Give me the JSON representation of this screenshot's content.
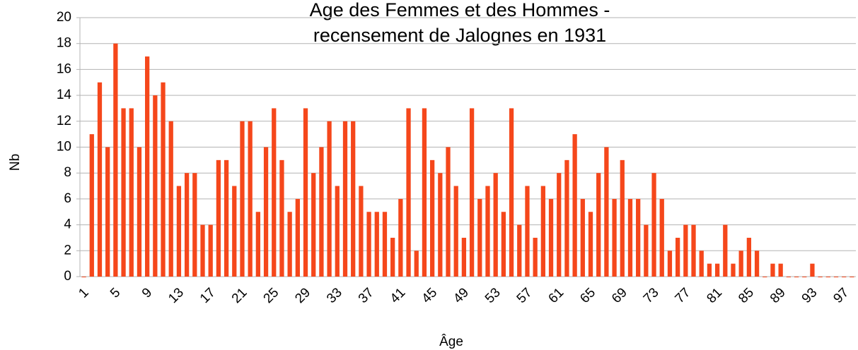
{
  "chart_data": {
    "type": "bar",
    "title": [
      "Age des Femmes et des Hommes -",
      "recensement de Jalognes en 1931"
    ],
    "x_label": "Âge",
    "y_label": "Nb",
    "categories": [
      "1",
      null,
      null,
      null,
      "5",
      null,
      null,
      null,
      "9",
      null,
      null,
      null,
      "13",
      null,
      null,
      null,
      "17",
      null,
      null,
      null,
      "21",
      null,
      null,
      null,
      "25",
      null,
      null,
      null,
      "29",
      null,
      null,
      null,
      "33",
      null,
      null,
      null,
      "37",
      null,
      null,
      null,
      "41",
      null,
      null,
      null,
      "45",
      null,
      null,
      null,
      "49",
      null,
      null,
      null,
      "53",
      null,
      null,
      null,
      "57",
      null,
      null,
      null,
      "61",
      null,
      null,
      null,
      "65",
      null,
      null,
      null,
      "69",
      null,
      null,
      null,
      "73",
      null,
      null,
      null,
      "77",
      null,
      null,
      null,
      "81",
      null,
      null,
      null,
      "85",
      null,
      null,
      null,
      "89",
      null,
      null,
      null,
      "93",
      null,
      null,
      null,
      "97",
      null
    ],
    "values": [
      0,
      11,
      15,
      10,
      18,
      13,
      13,
      10,
      17,
      14,
      15,
      12,
      7,
      8,
      8,
      4,
      4,
      9,
      9,
      7,
      12,
      12,
      5,
      10,
      13,
      9,
      5,
      6,
      13,
      8,
      10,
      12,
      7,
      12,
      12,
      7,
      5,
      5,
      5,
      3,
      6,
      13,
      2,
      13,
      9,
      8,
      10,
      7,
      3,
      13,
      6,
      7,
      8,
      5,
      13,
      4,
      7,
      3,
      7,
      6,
      8,
      9,
      11,
      6,
      5,
      8,
      10,
      6,
      9,
      6,
      6,
      4,
      8,
      6,
      2,
      3,
      4,
      4,
      2,
      1,
      1,
      4,
      1,
      2,
      3,
      2,
      0,
      1,
      1,
      0,
      0,
      0,
      1,
      0,
      0,
      0,
      0,
      0
    ],
    "color": "#f5471b",
    "ylim": [
      0,
      20
    ],
    "yticks": [
      0,
      2,
      4,
      6,
      8,
      10,
      12,
      14,
      16,
      18,
      20
    ],
    "grid": true
  }
}
